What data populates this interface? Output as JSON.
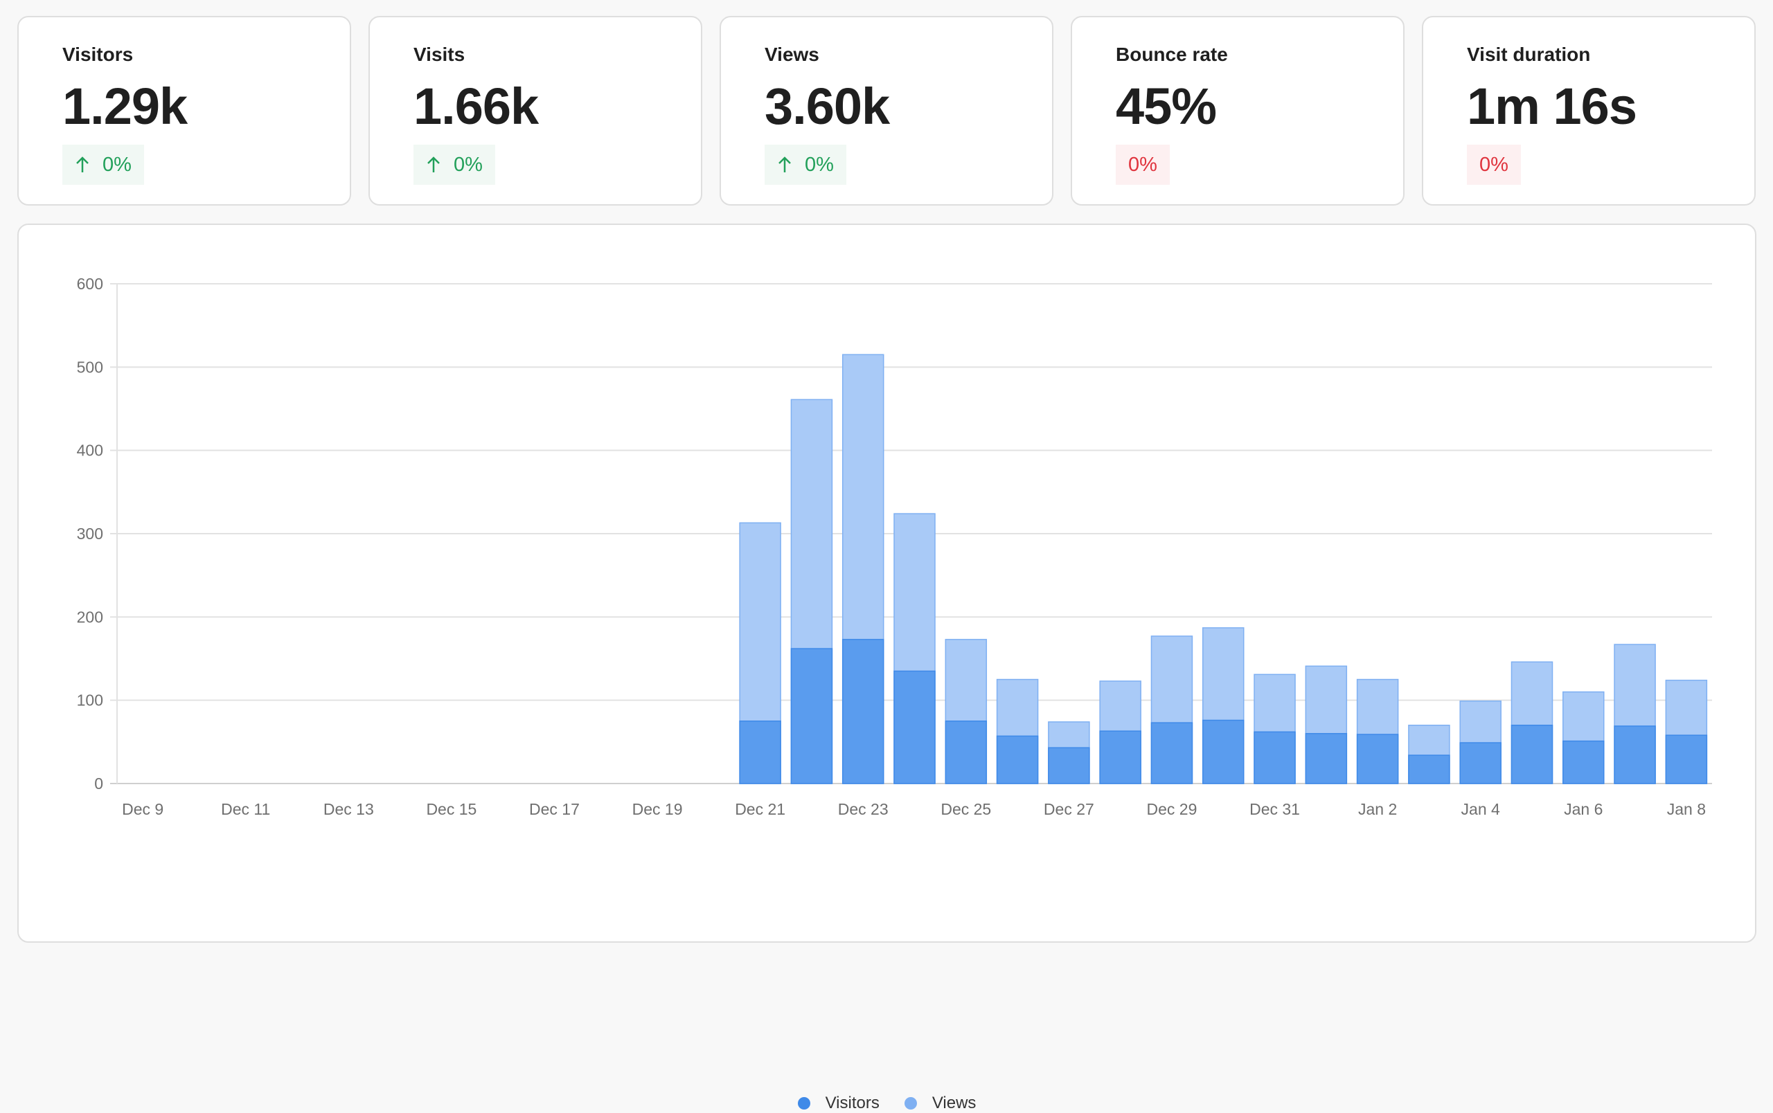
{
  "stats": [
    {
      "label": "Visitors",
      "value": "1.29k",
      "change": "0%",
      "trend": "up"
    },
    {
      "label": "Visits",
      "value": "1.66k",
      "change": "0%",
      "trend": "up"
    },
    {
      "label": "Views",
      "value": "3.60k",
      "change": "0%",
      "trend": "up"
    },
    {
      "label": "Bounce rate",
      "value": "45%",
      "change": "0%",
      "trend": "down"
    },
    {
      "label": "Visit duration",
      "value": "1m 16s",
      "change": "0%",
      "trend": "down"
    }
  ],
  "icons": {
    "up": "arrow-up-icon"
  },
  "colors": {
    "visitors": "#5a9cee",
    "views": "#a9caf7",
    "positive": "#22a05a",
    "negative": "#e0343e"
  },
  "chart_data": {
    "type": "bar",
    "overlap": true,
    "categories": [
      "Dec 9",
      "Dec 10",
      "Dec 11",
      "Dec 12",
      "Dec 13",
      "Dec 14",
      "Dec 15",
      "Dec 16",
      "Dec 17",
      "Dec 18",
      "Dec 19",
      "Dec 20",
      "Dec 21",
      "Dec 22",
      "Dec 23",
      "Dec 24",
      "Dec 25",
      "Dec 26",
      "Dec 27",
      "Dec 28",
      "Dec 29",
      "Dec 30",
      "Dec 31",
      "Jan 1",
      "Jan 2",
      "Jan 3",
      "Jan 4",
      "Jan 5",
      "Jan 6",
      "Jan 7",
      "Jan 8"
    ],
    "tick_labels": [
      "Dec 9",
      "Dec 11",
      "Dec 13",
      "Dec 15",
      "Dec 17",
      "Dec 19",
      "Dec 21",
      "Dec 23",
      "Dec 25",
      "Dec 27",
      "Dec 29",
      "Dec 31",
      "Jan 2",
      "Jan 4",
      "Jan 6",
      "Jan 8"
    ],
    "series": [
      {
        "name": "Views",
        "values": [
          0,
          0,
          0,
          0,
          0,
          0,
          0,
          0,
          0,
          0,
          0,
          0,
          313,
          461,
          515,
          324,
          173,
          125,
          74,
          123,
          177,
          187,
          131,
          141,
          125,
          70,
          99,
          146,
          110,
          167,
          124
        ]
      },
      {
        "name": "Visitors",
        "values": [
          0,
          0,
          0,
          0,
          0,
          0,
          0,
          0,
          0,
          0,
          0,
          0,
          75,
          162,
          173,
          135,
          75,
          57,
          43,
          63,
          73,
          76,
          62,
          60,
          59,
          34,
          49,
          70,
          51,
          69,
          58
        ]
      }
    ],
    "ylim": [
      0,
      600
    ],
    "yticks": [
      0,
      100,
      200,
      300,
      400,
      500,
      600
    ],
    "grid": true,
    "legend": "bottom-center"
  }
}
